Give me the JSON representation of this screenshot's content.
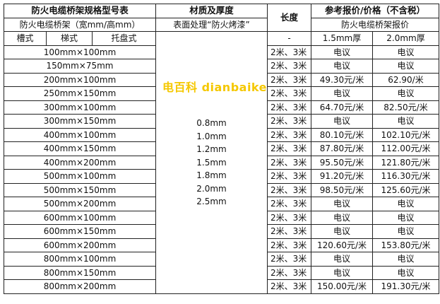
{
  "header": {
    "spec_title": "防火电缆桥架规格型号表",
    "material_title": "材质及厚度",
    "length_title": "长度",
    "price_title": "参考报价/价格（不含税）",
    "spec_subtitle": "防火电缆桥架（宽mm/高mm）",
    "material_subtitle": "表面处理“防火烤漆”",
    "price_subtitle": "防火电缆桥架报价",
    "types": [
      "槽式",
      "梯式",
      "托盘式"
    ],
    "length_dash": "-",
    "thickness_cols": [
      "1.5mm厚",
      "2.0mm厚"
    ]
  },
  "thicknesses": [
    "0.8mm",
    "1.0mm",
    "1.2mm",
    "1.5mm",
    "1.8mm",
    "2.0mm",
    "2.5mm"
  ],
  "rows": [
    {
      "spec": "100mm×100mm",
      "length": "2米、3米",
      "p15": "电议",
      "p20": "电议"
    },
    {
      "spec": "150mm×75mm",
      "length": "2米、3米",
      "p15": "电议",
      "p20": "电议"
    },
    {
      "spec": "200mm×100mm",
      "length": "2米、3米",
      "p15": "49.30元/米",
      "p20": "62.90/米"
    },
    {
      "spec": "250mm×150mm",
      "length": "2米、3米",
      "p15": "电议",
      "p20": "电议"
    },
    {
      "spec": "300mm×100mm",
      "length": "2米、3米",
      "p15": "64.70元/米",
      "p20": "82.50元/米"
    },
    {
      "spec": "300mm×150mm",
      "length": "2米、3米",
      "p15": "电议",
      "p20": "电议"
    },
    {
      "spec": "400mm×100mm",
      "length": "2米、3米",
      "p15": "80.10元/米",
      "p20": "102.10元/米"
    },
    {
      "spec": "400mm×150mm",
      "length": "2米、3米",
      "p15": "87.80元/米",
      "p20": "112.00元/米"
    },
    {
      "spec": "400mm×200mm",
      "length": "2米、3米",
      "p15": "95.50元/米",
      "p20": "121.80元/米"
    },
    {
      "spec": "500mm×100mm",
      "length": "2米、3米",
      "p15": "91.20元/米",
      "p20": "116.30元/米"
    },
    {
      "spec": "500mm×150mm",
      "length": "2米、3米",
      "p15": "98.50元/米",
      "p20": "125.60元/米"
    },
    {
      "spec": "500mm×200mm",
      "length": "2米、3米",
      "p15": "电议",
      "p20": "电议"
    },
    {
      "spec": "600mm×100mm",
      "length": "2米、3米",
      "p15": "电议",
      "p20": "电议"
    },
    {
      "spec": "600mm×150mm",
      "length": "2米、3米",
      "p15": "电议",
      "p20": "电议"
    },
    {
      "spec": "600mm×200mm",
      "length": "2米、3米",
      "p15": "120.60元/米",
      "p20": "153.80元/米"
    },
    {
      "spec": "800mm×100mm",
      "length": "2米、3米",
      "p15": "电议",
      "p20": "电议"
    },
    {
      "spec": "800mm×150mm",
      "length": "2米、3米",
      "p15": "电议",
      "p20": "电议"
    },
    {
      "spec": "800mm×200mm",
      "length": "2米、3米",
      "p15": "150.00元/米",
      "p20": "191.30元/米"
    }
  ],
  "watermark": "电百科 dianbaike",
  "colors": {
    "watermark": "#f5c800",
    "border": "#222222"
  }
}
